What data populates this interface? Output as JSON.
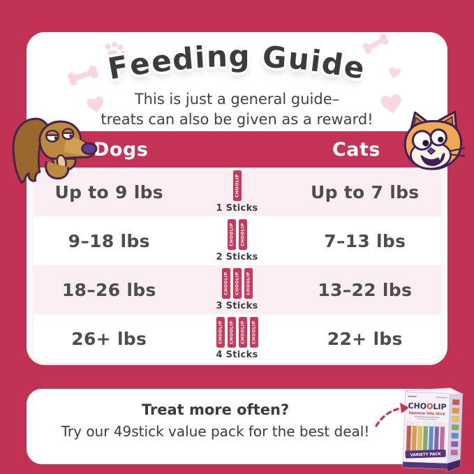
{
  "colors": {
    "background": "#C23353",
    "band": "#C43356",
    "stick": "#C73A5C",
    "row_pink": "#FCEFF3",
    "deco_pink": "#F8D7E2",
    "text_dark": "#3C3C3C"
  },
  "header": {
    "title": "Feeding Guide",
    "subtitle_line1": "This is just a general guide–",
    "subtitle_line2": "treats can also be given as a reward!"
  },
  "table": {
    "columns": {
      "dogs": "Dogs",
      "cats": "Cats"
    },
    "stick_brand": "CHOOLIP",
    "rows": [
      {
        "dogs": "Up to 9 lbs",
        "sticks": 1,
        "sticks_label": "1 Sticks",
        "cats": "Up to 7 lbs"
      },
      {
        "dogs": "9–18 lbs",
        "sticks": 2,
        "sticks_label": "2 Sticks",
        "cats": "7–13 lbs"
      },
      {
        "dogs": "18–26 lbs",
        "sticks": 3,
        "sticks_label": "3 Sticks",
        "cats": "13–22 lbs"
      },
      {
        "dogs": "26+ lbs",
        "sticks": 4,
        "sticks_label": "4 Sticks",
        "cats": "22+ lbs"
      }
    ]
  },
  "footer": {
    "headline": "Treat more often?",
    "body": "Try our 49stick value pack for the best deal!",
    "box": {
      "brand": "CHOOLIP",
      "product": "Squeeze Vita Stick",
      "variant": "VARIETY PACK"
    }
  },
  "decorations": [
    "paw-icon",
    "bone-icon",
    "heart-icon"
  ]
}
